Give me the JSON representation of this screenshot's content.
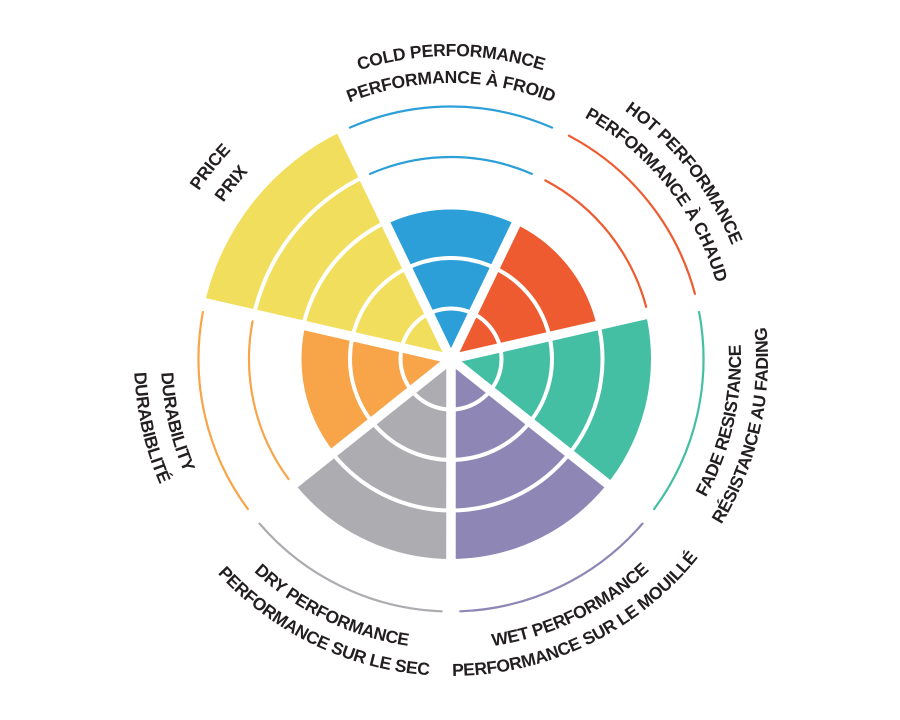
{
  "page": {
    "background_color": "#FFFFFF",
    "text_color": "#231F20"
  },
  "chart_data": {
    "type": "bar",
    "layout": "polar-sector-rating-wheel",
    "title": "",
    "levels": 5,
    "value_range": [
      0,
      5
    ],
    "grid": "concentric-ring-dividers",
    "legend_position": "none",
    "unfilled_levels_shown_as": "thin-colored-arcs",
    "sectors": [
      {
        "id": "cold-performance",
        "label_outer": "COLD PERFORMANCE",
        "label_inner": "PERFORMANCE À FROID",
        "label_en": "COLD PERFORMANCE",
        "label_fr": "PERFORMANCE À FROID",
        "value": 3,
        "color": "#2C9FD9",
        "center_angle_deg": 0,
        "label_orientation": "top"
      },
      {
        "id": "hot-performance",
        "label_outer": "HOT PERFORMANCE",
        "label_inner": "PERFORMANCE À CHAUD",
        "label_en": "HOT PERFORMANCE",
        "label_fr": "PERFORMANCE À CHAUD",
        "value": 3,
        "color": "#EF5B30",
        "center_angle_deg": 51.43,
        "label_orientation": "top"
      },
      {
        "id": "fade-resistance",
        "label_outer": "RÉSISTANCE AU FADING",
        "label_inner": "FADE RESISTANCE",
        "label_en": "FADE RESISTANCE",
        "label_fr": "RÉSISTANCE AU FADING",
        "value": 4,
        "color": "#44BFA4",
        "center_angle_deg": 102.86,
        "label_orientation": "bottom"
      },
      {
        "id": "wet-performance",
        "label_outer": "PERFORMANCE SUR LE MOUILLÉ",
        "label_inner": "WET PERFORMANCE",
        "label_en": "WET PERFORMANCE",
        "label_fr": "PERFORMANCE SUR LE MOUILLÉ",
        "value": 4,
        "color": "#8E87B6",
        "center_angle_deg": 154.29,
        "label_orientation": "bottom"
      },
      {
        "id": "dry-performance",
        "label_outer": "PERFORMANCE SUR LE SEC",
        "label_inner": "DRY PERFORMANCE",
        "label_en": "DRY PERFORMANCE",
        "label_fr": "PERFORMANCE SUR LE SEC",
        "value": 4,
        "color": "#ADACB0",
        "center_angle_deg": 205.71,
        "label_orientation": "bottom"
      },
      {
        "id": "durability",
        "label_outer": "DURABIBLITÉ",
        "label_inner": "DURABILITY",
        "label_en": "DURABILITY",
        "label_fr": "DURABIBLITÉ",
        "value": 3,
        "color": "#F8A449",
        "center_angle_deg": 257.14,
        "label_orientation": "bottom"
      },
      {
        "id": "price",
        "label_outer": "PRICE",
        "label_inner": "PRIX",
        "label_en": "PRICE",
        "label_fr": "PRIX",
        "value": 5,
        "color": "#F2DE5D",
        "center_angle_deg": 308.57,
        "label_orientation": "top"
      }
    ]
  }
}
